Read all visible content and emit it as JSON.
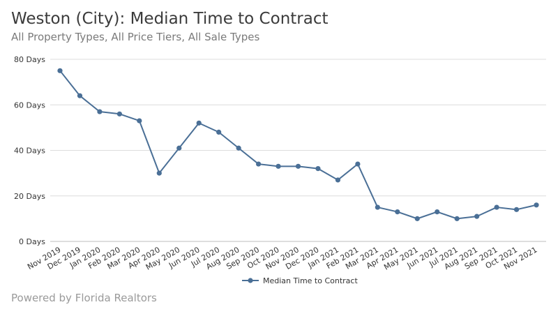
{
  "title": "Weston (City): Median Time to Contract",
  "subtitle": "All Property Types, All Price Tiers, All Sale Types",
  "footer": "Powered by Florida Realtors",
  "chart_data": {
    "type": "line",
    "title": "Weston (City): Median Time to Contract",
    "subtitle": "All Property Types, All Price Tiers, All Sale Types",
    "xlabel": "",
    "ylabel": "",
    "ylim": [
      0,
      80
    ],
    "yticks": [
      0,
      20,
      40,
      60,
      80
    ],
    "ytick_labels": [
      "0 Days",
      "20 Days",
      "40 Days",
      "60 Days",
      "80 Days"
    ],
    "grid": true,
    "legend_position": "bottom",
    "color": "#4a6f96",
    "categories": [
      "Nov 2019",
      "Dec 2019",
      "Jan 2020",
      "Feb 2020",
      "Mar 2020",
      "Apr 2020",
      "May 2020",
      "Jun 2020",
      "Jul 2020",
      "Aug 2020",
      "Sep 2020",
      "Oct 2020",
      "Nov 2020",
      "Dec 2020",
      "Jan 2021",
      "Feb 2021",
      "Mar 2021",
      "Apr 2021",
      "May 2021",
      "Jun 2021",
      "Jul 2021",
      "Aug 2021",
      "Sep 2021",
      "Oct 2021",
      "Nov 2021"
    ],
    "series": [
      {
        "name": "Median Time to Contract",
        "values": [
          75,
          64,
          57,
          56,
          53,
          30,
          41,
          52,
          48,
          41,
          34,
          33,
          33,
          32,
          27,
          34,
          15,
          13,
          10,
          13,
          10,
          11,
          15,
          14,
          16
        ]
      }
    ]
  }
}
